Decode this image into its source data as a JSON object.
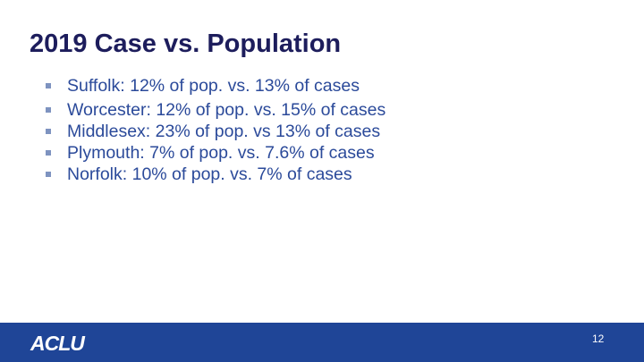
{
  "slide": {
    "title": "2019 Case vs. Population",
    "bullets": [
      "Suffolk: 12% of pop. vs. 13% of cases",
      "Worcester: 12% of pop. vs. 15% of cases",
      "Middlesex: 23% of pop. vs 13% of cases",
      "Plymouth: 7% of pop. vs. 7.6% of cases",
      "Norfolk: 10% of pop. vs. 7% of cases"
    ],
    "footer": {
      "logo": "ACLU",
      "page_number": "12"
    }
  }
}
